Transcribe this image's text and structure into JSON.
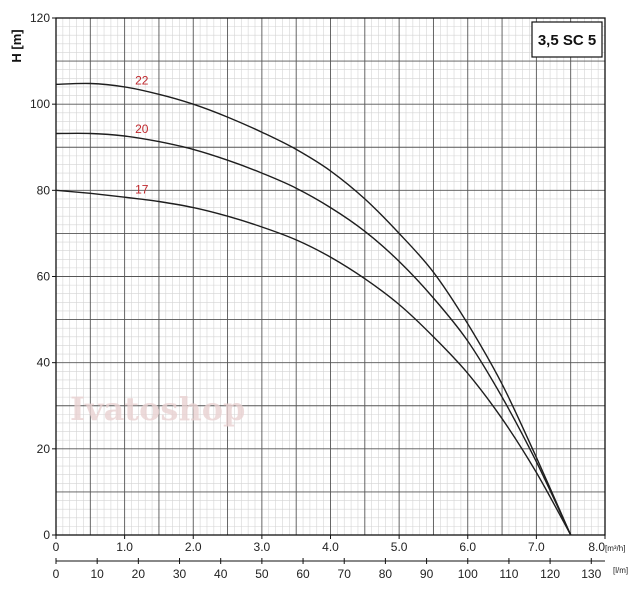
{
  "chart_data": {
    "type": "line",
    "title": "3,5 SC 5",
    "ylabel": "H [m]",
    "xlabel_primary_unit": "[m³/h]",
    "xlabel_secondary_unit": "[l/m]",
    "xlim": [
      0,
      8.0
    ],
    "ylim": [
      0,
      120
    ],
    "x_ticks_primary": [
      "0",
      "1.0",
      "2.0",
      "3.0",
      "4.0",
      "5.0",
      "6.0",
      "7.0",
      "8.0"
    ],
    "x_ticks_secondary": [
      "0",
      "10",
      "20",
      "30",
      "40",
      "50",
      "60",
      "70",
      "80",
      "90",
      "100",
      "110",
      "120",
      "130"
    ],
    "y_ticks": [
      "0",
      "20",
      "40",
      "60",
      "80",
      "100",
      "120"
    ],
    "grid": true,
    "series": [
      {
        "name": "22",
        "x": [
          0,
          0.5,
          1.0,
          1.5,
          2.0,
          2.5,
          3.0,
          3.5,
          4.0,
          4.5,
          5.0,
          5.5,
          6.0,
          6.5,
          7.0,
          7.5
        ],
        "values": [
          104.6,
          104.8,
          104,
          102.3,
          100,
          97,
          93.5,
          89.5,
          84.5,
          78,
          70,
          61,
          49,
          35,
          18,
          0
        ]
      },
      {
        "name": "20",
        "x": [
          0,
          0.5,
          1.0,
          1.5,
          2.0,
          2.5,
          3.0,
          3.5,
          4.0,
          4.5,
          5.0,
          5.5,
          6.0,
          6.5,
          7.0,
          7.5
        ],
        "values": [
          93.2,
          93.2,
          92.6,
          91.3,
          89.5,
          87,
          84,
          80.5,
          76,
          70.5,
          63.5,
          55,
          45,
          32,
          17,
          0
        ]
      },
      {
        "name": "17",
        "x": [
          0,
          0.5,
          1.0,
          1.5,
          2.0,
          2.5,
          3.0,
          3.5,
          4.0,
          4.5,
          5.0,
          5.5,
          6.0,
          6.5,
          7.0,
          7.5
        ],
        "values": [
          80,
          79.3,
          78.4,
          77.4,
          76,
          74,
          71.5,
          68.5,
          64.5,
          59.5,
          53.5,
          46,
          37.5,
          27,
          14.5,
          0
        ]
      }
    ],
    "curve_label_color": "#c0282d",
    "curve_color": "#1e1e1e"
  },
  "watermark": "Ivatoshop"
}
